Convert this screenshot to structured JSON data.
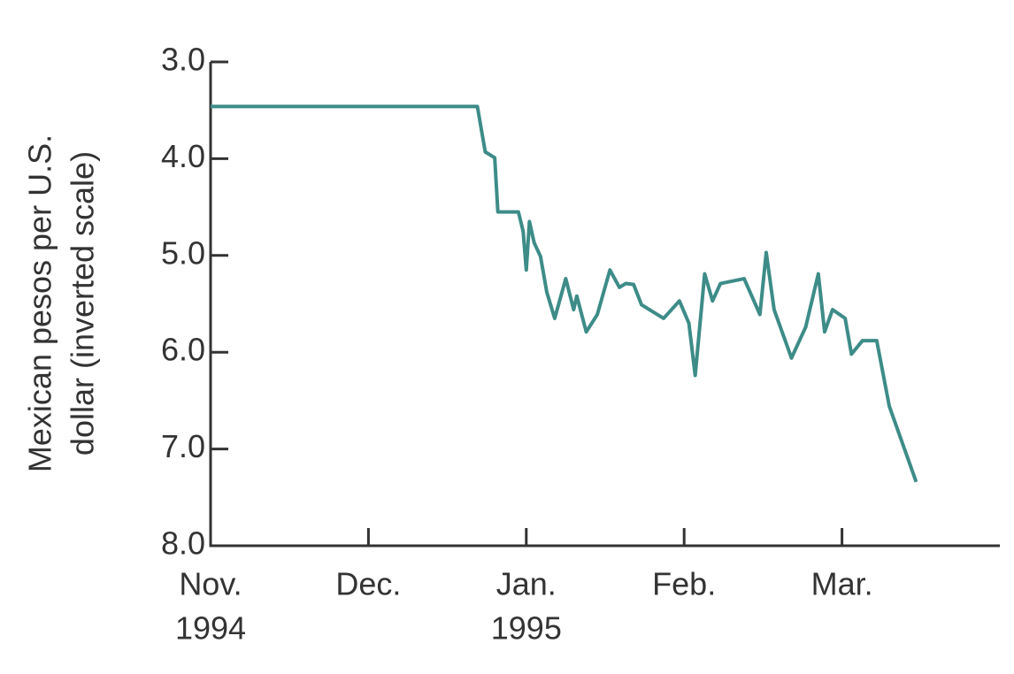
{
  "chart_data": {
    "type": "line",
    "y_label": [
      "Mexican pesos per U.S.",
      "dollar (inverted scale)"
    ],
    "x": [
      0,
      1.69,
      1.74,
      1.8,
      1.82,
      1.95,
      1.98,
      2.0,
      2.02,
      2.05,
      2.09,
      2.13,
      2.18,
      2.25,
      2.3,
      2.32,
      2.38,
      2.45,
      2.53,
      2.59,
      2.63,
      2.68,
      2.73,
      2.87,
      2.97,
      3.03,
      3.07,
      3.13,
      3.18,
      3.23,
      3.38,
      3.48,
      3.52,
      3.57,
      3.68,
      3.77,
      3.85,
      3.89,
      3.94,
      4.02,
      4.06,
      4.13,
      4.22,
      4.3,
      4.47
    ],
    "series": [
      {
        "color": "#3d8c88",
        "values": [
          3.46,
          3.46,
          3.93,
          3.99,
          4.55,
          4.55,
          4.75,
          5.15,
          4.65,
          4.87,
          5.01,
          5.38,
          5.65,
          5.24,
          5.56,
          5.42,
          5.79,
          5.61,
          5.15,
          5.33,
          5.29,
          5.3,
          5.51,
          5.65,
          5.47,
          5.7,
          6.24,
          5.19,
          5.47,
          5.29,
          5.24,
          5.61,
          4.97,
          5.56,
          6.06,
          5.74,
          5.19,
          5.79,
          5.56,
          5.65,
          6.02,
          5.88,
          5.88,
          6.56,
          7.34
        ]
      }
    ],
    "xlim": [
      0,
      5
    ],
    "xticks": [
      {
        "value": 0,
        "label": [
          "Nov.",
          "1994"
        ]
      },
      {
        "value": 1,
        "label": [
          "Dec."
        ]
      },
      {
        "value": 2,
        "label": [
          "Jan.",
          "1995"
        ]
      },
      {
        "value": 3,
        "label": [
          "Feb."
        ]
      },
      {
        "value": 4,
        "label": [
          "Mar."
        ]
      }
    ],
    "ylim": [
      8,
      3
    ],
    "yticks": [
      {
        "value": 3,
        "label": "3.0"
      },
      {
        "value": 4,
        "label": "4.0"
      },
      {
        "value": 5,
        "label": "5.0"
      },
      {
        "value": 6,
        "label": "6.0"
      },
      {
        "value": 7,
        "label": "7.0"
      },
      {
        "value": 8,
        "label": "8.0"
      }
    ]
  }
}
